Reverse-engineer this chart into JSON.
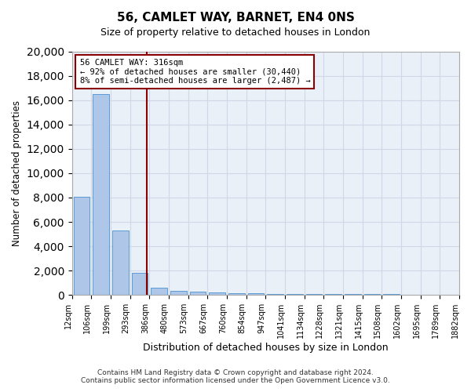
{
  "title1": "56, CAMLET WAY, BARNET, EN4 0NS",
  "title2": "Size of property relative to detached houses in London",
  "xlabel": "Distribution of detached houses by size in London",
  "ylabel": "Number of detached properties",
  "bin_labels": [
    "12sqm",
    "106sqm",
    "199sqm",
    "293sqm",
    "386sqm",
    "480sqm",
    "573sqm",
    "667sqm",
    "760sqm",
    "854sqm",
    "947sqm",
    "1041sqm",
    "1134sqm",
    "1228sqm",
    "1321sqm",
    "1415sqm",
    "1508sqm",
    "1602sqm",
    "1695sqm",
    "1789sqm",
    "1882sqm"
  ],
  "bar_heights": [
    8050,
    16500,
    5300,
    1800,
    600,
    350,
    260,
    200,
    150,
    120,
    100,
    90,
    80,
    70,
    60,
    55,
    50,
    45,
    40,
    35
  ],
  "bar_color": "#aec6e8",
  "bar_edge_color": "#5b9bd5",
  "property_sqm": 316,
  "vline_x": 3.35,
  "vline_color": "#8b0000",
  "annotation_line1": "56 CAMLET WAY: 316sqm",
  "annotation_line2": "← 92% of detached houses are smaller (30,440)",
  "annotation_line3": "8% of semi-detached houses are larger (2,487) →",
  "annotation_box_color": "#ffffff",
  "annotation_box_edge": "#8b0000",
  "grid_color": "#d0d8e8",
  "background_color": "#eaf0f8",
  "ylim": [
    0,
    20000
  ],
  "yticks": [
    0,
    2000,
    4000,
    6000,
    8000,
    10000,
    12000,
    14000,
    16000,
    18000,
    20000
  ],
  "footer1": "Contains HM Land Registry data © Crown copyright and database right 2024.",
  "footer2": "Contains public sector information licensed under the Open Government Licence v3.0."
}
